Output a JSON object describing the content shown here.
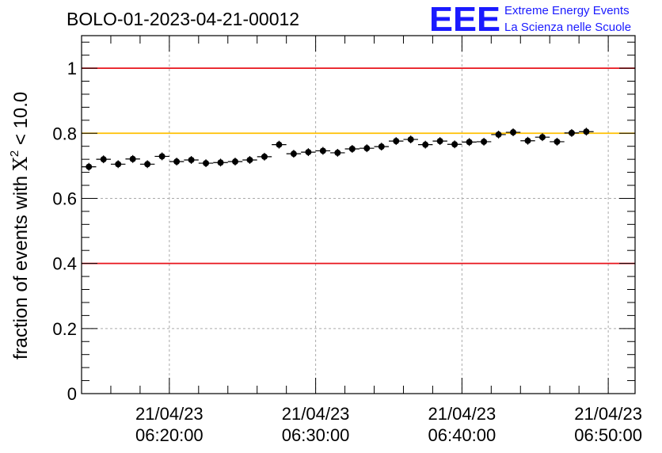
{
  "run_title": "BOLO-01-2023-04-21-00012",
  "logo": {
    "mark": "EEE",
    "line1": "Extreme Energy Events",
    "line2": "La Scienza nelle Scuole",
    "color": "#1a1aff"
  },
  "chart_data": {
    "type": "scatter",
    "title": "BOLO-01-2023-04-21-00012",
    "ylabel_prefix": "fraction of events with ",
    "ylabel_symbol": "X",
    "ylabel_superscript": "2",
    "ylabel_suffix": " < 10.0",
    "xlabel": "",
    "ylim": [
      0,
      1.1
    ],
    "xlim": [
      "06:14:00",
      "06:51:50"
    ],
    "yticks": [
      0,
      0.2,
      0.4,
      0.6,
      0.8,
      1
    ],
    "ytick_labels": [
      "0",
      "0.2",
      "0.4",
      "0.6",
      "0.8",
      "1"
    ],
    "xticks": [
      {
        "x": "06:20:00",
        "date": "21/04/23",
        "time": "06:20:00"
      },
      {
        "x": "06:30:00",
        "date": "21/04/23",
        "time": "06:30:00"
      },
      {
        "x": "06:40:00",
        "date": "21/04/23",
        "time": "06:40:00"
      },
      {
        "x": "06:50:00",
        "date": "21/04/23",
        "time": "06:50:00"
      }
    ],
    "grid": true,
    "reference_lines": [
      {
        "y": 1.0,
        "color": "#e8141c"
      },
      {
        "y": 0.8,
        "color": "#ffc000"
      },
      {
        "y": 0.4,
        "color": "#e8141c"
      }
    ],
    "series": [
      {
        "color": "#000000",
        "x_bin_width_seconds": 60,
        "points": [
          {
            "x": "06:14:30",
            "y": 0.697,
            "yerr": 0.012
          },
          {
            "x": "06:15:30",
            "y": 0.72,
            "yerr": 0.012
          },
          {
            "x": "06:16:30",
            "y": 0.705,
            "yerr": 0.012
          },
          {
            "x": "06:17:30",
            "y": 0.721,
            "yerr": 0.012
          },
          {
            "x": "06:18:30",
            "y": 0.705,
            "yerr": 0.012
          },
          {
            "x": "06:19:30",
            "y": 0.729,
            "yerr": 0.012
          },
          {
            "x": "06:20:30",
            "y": 0.713,
            "yerr": 0.012
          },
          {
            "x": "06:21:30",
            "y": 0.718,
            "yerr": 0.012
          },
          {
            "x": "06:22:30",
            "y": 0.708,
            "yerr": 0.012
          },
          {
            "x": "06:23:30",
            "y": 0.71,
            "yerr": 0.012
          },
          {
            "x": "06:24:30",
            "y": 0.713,
            "yerr": 0.012
          },
          {
            "x": "06:25:30",
            "y": 0.718,
            "yerr": 0.012
          },
          {
            "x": "06:26:30",
            "y": 0.728,
            "yerr": 0.012
          },
          {
            "x": "06:27:30",
            "y": 0.765,
            "yerr": 0.012
          },
          {
            "x": "06:28:30",
            "y": 0.737,
            "yerr": 0.012
          },
          {
            "x": "06:29:30",
            "y": 0.742,
            "yerr": 0.012
          },
          {
            "x": "06:30:30",
            "y": 0.746,
            "yerr": 0.012
          },
          {
            "x": "06:31:30",
            "y": 0.74,
            "yerr": 0.012
          },
          {
            "x": "06:32:30",
            "y": 0.752,
            "yerr": 0.012
          },
          {
            "x": "06:33:30",
            "y": 0.754,
            "yerr": 0.012
          },
          {
            "x": "06:34:30",
            "y": 0.759,
            "yerr": 0.012
          },
          {
            "x": "06:35:30",
            "y": 0.776,
            "yerr": 0.012
          },
          {
            "x": "06:36:30",
            "y": 0.781,
            "yerr": 0.012
          },
          {
            "x": "06:37:30",
            "y": 0.765,
            "yerr": 0.012
          },
          {
            "x": "06:38:30",
            "y": 0.776,
            "yerr": 0.012
          },
          {
            "x": "06:39:30",
            "y": 0.766,
            "yerr": 0.012
          },
          {
            "x": "06:40:30",
            "y": 0.773,
            "yerr": 0.012
          },
          {
            "x": "06:41:30",
            "y": 0.774,
            "yerr": 0.012
          },
          {
            "x": "06:42:30",
            "y": 0.796,
            "yerr": 0.012
          },
          {
            "x": "06:43:30",
            "y": 0.803,
            "yerr": 0.012
          },
          {
            "x": "06:44:30",
            "y": 0.777,
            "yerr": 0.012
          },
          {
            "x": "06:45:30",
            "y": 0.788,
            "yerr": 0.012
          },
          {
            "x": "06:46:30",
            "y": 0.774,
            "yerr": 0.012
          },
          {
            "x": "06:47:30",
            "y": 0.801,
            "yerr": 0.012
          },
          {
            "x": "06:48:30",
            "y": 0.805,
            "yerr": 0.012
          }
        ]
      }
    ]
  }
}
